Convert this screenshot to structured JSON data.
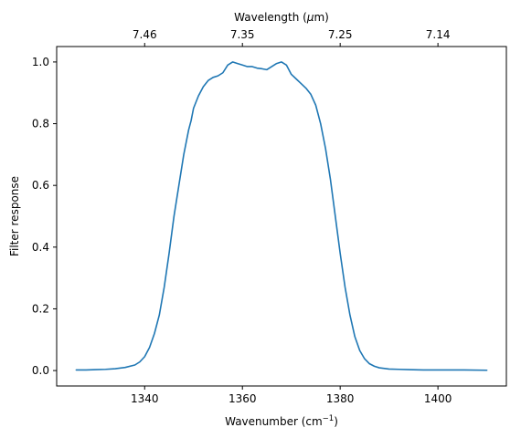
{
  "chart_data": {
    "type": "line",
    "xlabel": "Wavenumber (cm",
    "xlabel_sup": "−1",
    "xlabel_end": ")",
    "ylabel": "Filter response",
    "top_xlabel": "Wavelength (",
    "top_xlabel_mu": "μ",
    "top_xlabel_end": "m)",
    "xlim": [
      1322,
      1414
    ],
    "ylim": [
      -0.05,
      1.05
    ],
    "grid": false,
    "legend": "none",
    "series_color": "#1f77b4",
    "x_ticks": [
      {
        "value": 1340,
        "label": "1340"
      },
      {
        "value": 1360,
        "label": "1360"
      },
      {
        "value": 1380,
        "label": "1380"
      },
      {
        "value": 1400,
        "label": "1400"
      }
    ],
    "y_ticks": [
      {
        "value": 0.0,
        "label": "0.0"
      },
      {
        "value": 0.2,
        "label": "0.2"
      },
      {
        "value": 0.4,
        "label": "0.4"
      },
      {
        "value": 0.6,
        "label": "0.6"
      },
      {
        "value": 0.8,
        "label": "0.8"
      },
      {
        "value": 1.0,
        "label": "1.0"
      }
    ],
    "top_ticks": [
      {
        "value": 1340,
        "label": "7.46"
      },
      {
        "value": 1360,
        "label": "7.35"
      },
      {
        "value": 1380,
        "label": "7.25"
      },
      {
        "value": 1400,
        "label": "7.14"
      }
    ],
    "series": [
      {
        "x": [
          1326,
          1328,
          1330,
          1332,
          1334,
          1336,
          1338,
          1339,
          1340,
          1341,
          1342,
          1343,
          1344,
          1345,
          1346,
          1347,
          1348,
          1349,
          1349.5,
          1350,
          1351,
          1352,
          1353,
          1354,
          1355,
          1356,
          1357,
          1358,
          1359,
          1360,
          1361,
          1362,
          1363,
          1364,
          1365,
          1366,
          1367,
          1368,
          1369,
          1370,
          1371,
          1372,
          1373,
          1374,
          1375,
          1376,
          1377,
          1378,
          1379,
          1380,
          1381,
          1382,
          1383,
          1384,
          1385,
          1386,
          1387,
          1388,
          1390,
          1392,
          1394,
          1397,
          1400,
          1405,
          1410
        ],
        "y": [
          0.002,
          0.002,
          0.003,
          0.004,
          0.006,
          0.01,
          0.018,
          0.028,
          0.045,
          0.075,
          0.12,
          0.18,
          0.27,
          0.38,
          0.5,
          0.6,
          0.7,
          0.78,
          0.81,
          0.85,
          0.89,
          0.92,
          0.94,
          0.95,
          0.955,
          0.965,
          0.99,
          1.0,
          0.995,
          0.99,
          0.985,
          0.985,
          0.98,
          0.978,
          0.975,
          0.985,
          0.995,
          1.0,
          0.99,
          0.96,
          0.945,
          0.93,
          0.915,
          0.895,
          0.86,
          0.8,
          0.72,
          0.62,
          0.5,
          0.38,
          0.27,
          0.18,
          0.11,
          0.065,
          0.038,
          0.022,
          0.014,
          0.009,
          0.005,
          0.004,
          0.003,
          0.002,
          0.002,
          0.002,
          0.001
        ]
      }
    ]
  }
}
